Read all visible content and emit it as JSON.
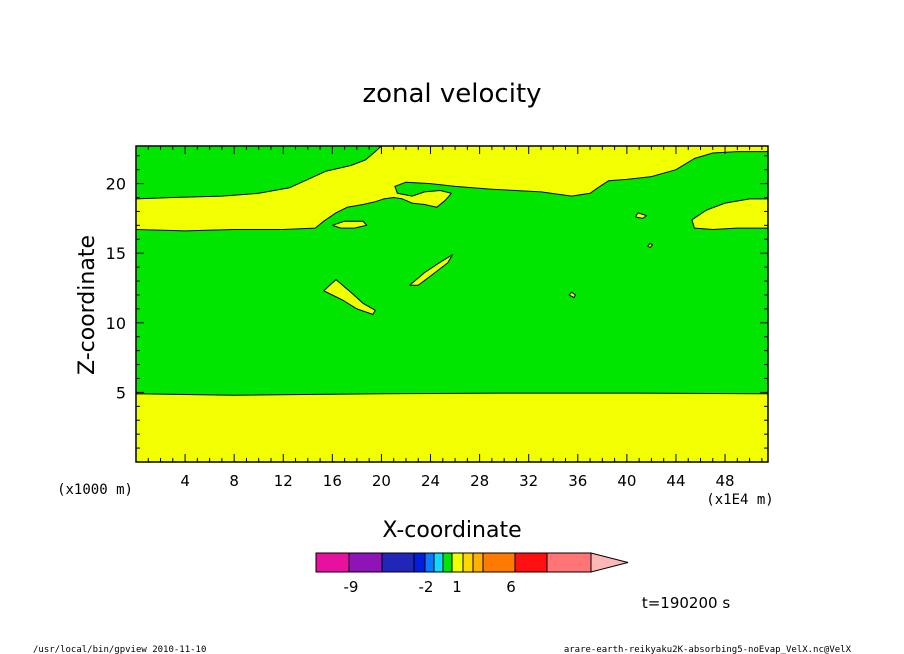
{
  "chart_data": {
    "type": "contour",
    "title": "zonal velocity",
    "xlabel": "X-coordinate",
    "ylabel": "Z-coordinate",
    "x_unit_label": "(x1E4 m)",
    "y_unit_label": "(x1000 m)",
    "xlim": [
      0,
      51.5
    ],
    "ylim": [
      0,
      22.7
    ],
    "x_ticks": [
      4,
      8,
      12,
      16,
      20,
      24,
      28,
      32,
      36,
      40,
      44,
      48
    ],
    "y_ticks": [
      5,
      10,
      15,
      20
    ],
    "grid": false,
    "colors": {
      "background_fill": "#00e600",
      "contour_fill": "#f2ff00",
      "outline": "#000000"
    },
    "regions": [
      {
        "id": "lower-band",
        "fill": "#f2ff00",
        "points": [
          [
            0,
            0
          ],
          [
            51.5,
            0
          ],
          [
            51.5,
            4.9
          ],
          [
            40,
            4.95
          ],
          [
            30,
            4.95
          ],
          [
            20,
            4.9
          ],
          [
            8,
            4.8
          ],
          [
            0,
            4.9
          ]
        ]
      },
      {
        "id": "upper-band",
        "fill": "#f2ff00",
        "points": [
          [
            0,
            18.9
          ],
          [
            3,
            19
          ],
          [
            7,
            19.1
          ],
          [
            10,
            19.3
          ],
          [
            12.5,
            19.7
          ],
          [
            14,
            20.3
          ],
          [
            15.5,
            20.9
          ],
          [
            17.5,
            21.3
          ],
          [
            18.7,
            21.7
          ],
          [
            19.5,
            22.3
          ],
          [
            20,
            22.7
          ],
          [
            51.5,
            22.7
          ],
          [
            51.5,
            22.3
          ],
          [
            49,
            22.3
          ],
          [
            47,
            22.2
          ],
          [
            45.5,
            21.8
          ],
          [
            44,
            21
          ],
          [
            42,
            20.5
          ],
          [
            40,
            20.3
          ],
          [
            38.5,
            20.2
          ],
          [
            37.8,
            19.8
          ],
          [
            37,
            19.3
          ],
          [
            35.5,
            19.1
          ],
          [
            33,
            19.4
          ],
          [
            29,
            19.6
          ],
          [
            26,
            19.8
          ],
          [
            24,
            20
          ],
          [
            22,
            20.1
          ],
          [
            21.1,
            19.8
          ],
          [
            21.3,
            19.3
          ],
          [
            22.5,
            19.1
          ],
          [
            23.5,
            19.4
          ],
          [
            24.8,
            19.5
          ],
          [
            25.7,
            19.3
          ],
          [
            25.2,
            18.8
          ],
          [
            24.5,
            18.3
          ],
          [
            23.5,
            18.5
          ],
          [
            22.5,
            18.6
          ],
          [
            21.7,
            18.9
          ],
          [
            21,
            19
          ],
          [
            20.2,
            18.9
          ],
          [
            19.5,
            18.7
          ],
          [
            18.5,
            18.5
          ],
          [
            17.2,
            18.3
          ],
          [
            16.3,
            17.9
          ],
          [
            15.3,
            17.3
          ],
          [
            14.6,
            16.8
          ],
          [
            12,
            16.7
          ],
          [
            8,
            16.7
          ],
          [
            4,
            16.6
          ],
          [
            0,
            16.7
          ]
        ]
      },
      {
        "id": "right-lobe",
        "fill": "#f2ff00",
        "points": [
          [
            51.5,
            18.9
          ],
          [
            50,
            18.9
          ],
          [
            48,
            18.6
          ],
          [
            46.5,
            18.1
          ],
          [
            45.3,
            17.4
          ],
          [
            45.5,
            16.8
          ],
          [
            47,
            16.7
          ],
          [
            49,
            16.8
          ],
          [
            51.5,
            16.8
          ]
        ]
      },
      {
        "id": "blob-a",
        "fill": "#f2ff00",
        "points": [
          [
            16,
            17.0
          ],
          [
            17,
            17.3
          ],
          [
            18.5,
            17.3
          ],
          [
            18.8,
            17.0
          ],
          [
            17.8,
            16.8
          ],
          [
            16.7,
            16.8
          ]
        ]
      },
      {
        "id": "blob-b",
        "fill": "#f2ff00",
        "points": [
          [
            22.3,
            12.7
          ],
          [
            23.5,
            13.6
          ],
          [
            24.7,
            14.3
          ],
          [
            25.8,
            14.9
          ],
          [
            25.4,
            14.3
          ],
          [
            24.2,
            13.5
          ],
          [
            23.0,
            12.7
          ]
        ]
      },
      {
        "id": "blob-c",
        "fill": "#f2ff00",
        "points": [
          [
            15.3,
            12.3
          ],
          [
            16.3,
            13.1
          ],
          [
            17.5,
            12.2
          ],
          [
            18.5,
            11.4
          ],
          [
            19.5,
            10.9
          ],
          [
            19.3,
            10.6
          ],
          [
            18,
            11.0
          ],
          [
            16.9,
            11.6
          ],
          [
            16.0,
            12.0
          ]
        ]
      },
      {
        "id": "speck-a",
        "fill": "#f2ff00",
        "points": [
          [
            35.5,
            12.2
          ],
          [
            35.8,
            12.0
          ],
          [
            35.7,
            11.8
          ],
          [
            35.3,
            12.0
          ]
        ]
      },
      {
        "id": "speck-b",
        "fill": "#f2ff00",
        "points": [
          [
            40.9,
            17.9
          ],
          [
            41.6,
            17.7
          ],
          [
            41.3,
            17.5
          ],
          [
            40.7,
            17.6
          ]
        ]
      },
      {
        "id": "speck-c",
        "fill": "#f2ff00",
        "points": [
          [
            41.9,
            15.7
          ],
          [
            42.1,
            15.6
          ],
          [
            41.9,
            15.4
          ],
          [
            41.7,
            15.5
          ]
        ]
      }
    ]
  },
  "colorbar": {
    "swatches": [
      "#e6119e",
      "#8f14b8",
      "#2226b8",
      "#001edb",
      "#0a78ff",
      "#11d9ff",
      "#00e600",
      "#f2ff00",
      "#ffd700",
      "#ffb000",
      "#ff7a00",
      "#ff0f0f",
      "#ff7575",
      "#ffb6b6"
    ],
    "labels": [
      "-9",
      "-2",
      "1",
      "6"
    ]
  },
  "time_label": "t=190200 s",
  "footer": {
    "left": "/usr/local/bin/gpview  2010-11-10",
    "right": "arare-earth-reikyaku2K-absorbing5-noEvap_VelX.nc@VelX"
  }
}
